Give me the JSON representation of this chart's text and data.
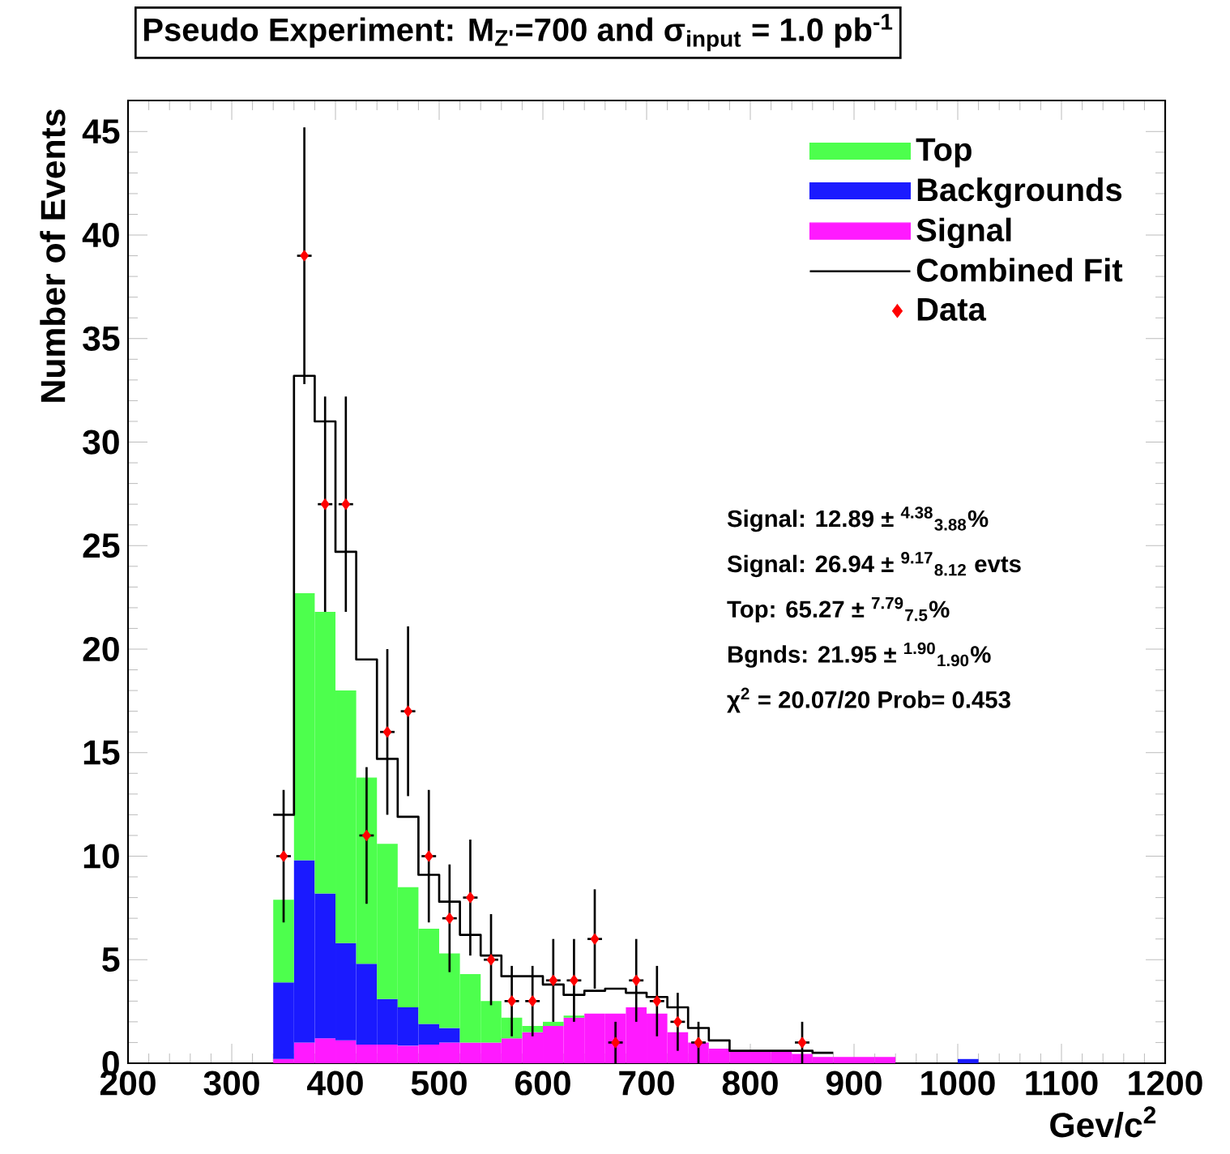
{
  "chart_data": {
    "type": "bar",
    "title": "Pseudo Experiment: M$_{Z'}$=700 and σ$_{input}$ = 1.0 pb$^{-1}$",
    "xlabel": "Gev/c$^{2}$",
    "ylabel": "Number of Events",
    "x": [
      350,
      370,
      390,
      410,
      430,
      450,
      470,
      490,
      510,
      530,
      550,
      570,
      590,
      610,
      630,
      650,
      670,
      690,
      710,
      730,
      750,
      770,
      790,
      810,
      830,
      850,
      870,
      890,
      910,
      930,
      950,
      970,
      990,
      1010
    ],
    "stacked": true,
    "series": [
      {
        "name": "Signal",
        "color": "#ff1aff",
        "values": [
          0.2,
          1.0,
          1.2,
          1.1,
          0.9,
          0.9,
          0.85,
          0.9,
          1.0,
          1.0,
          1.0,
          1.2,
          1.5,
          1.8,
          2.2,
          2.4,
          2.4,
          2.7,
          2.4,
          1.5,
          1.0,
          0.7,
          0.6,
          0.6,
          0.6,
          0.45,
          0.3,
          0.3,
          0.3,
          0.3,
          0,
          0,
          0,
          0
        ]
      },
      {
        "name": "Backgrounds",
        "color": "#1a1aff",
        "values": [
          3.7,
          8.8,
          7.0,
          4.7,
          3.9,
          2.2,
          1.85,
          1.0,
          0.7,
          0,
          0,
          0,
          0,
          0,
          0,
          0,
          0,
          0,
          0,
          0,
          0,
          0,
          0,
          0,
          0,
          0,
          0,
          0,
          0,
          0,
          0,
          0,
          0,
          0.2
        ]
      },
      {
        "name": "Top",
        "color": "#4dff4d",
        "values": [
          4.0,
          12.9,
          13.6,
          12.2,
          9.0,
          7.5,
          5.8,
          4.6,
          3.6,
          3.3,
          2.0,
          1.0,
          0.3,
          0.2,
          0.1,
          0,
          0,
          0,
          0,
          0,
          0,
          0,
          0,
          0,
          0,
          0,
          0,
          0,
          0,
          0,
          0,
          0,
          0,
          0
        ]
      },
      {
        "name": "Combined Fit",
        "type": "step",
        "color": "#000000",
        "x": [
          340,
          360,
          380,
          400,
          420,
          440,
          460,
          480,
          500,
          520,
          540,
          560,
          580,
          600,
          620,
          640,
          660,
          680,
          700,
          720,
          740,
          760,
          780,
          800,
          820,
          840,
          860,
          880
        ],
        "values": [
          12.0,
          33.2,
          31.0,
          24.7,
          19.5,
          14.7,
          11.9,
          9.1,
          7.8,
          6.2,
          5.2,
          4.2,
          4.2,
          3.8,
          3.3,
          3.5,
          3.6,
          3.4,
          3.2,
          2.7,
          1.7,
          1.1,
          0.6,
          0.6,
          0.6,
          0.6,
          0.5,
          0.5
        ]
      },
      {
        "name": "Data",
        "type": "scatter",
        "color": "#ff0000",
        "marker": "diamond",
        "x": [
          350,
          370,
          390,
          410,
          430,
          450,
          470,
          490,
          510,
          530,
          550,
          570,
          590,
          610,
          630,
          650,
          670,
          690,
          710,
          730,
          750,
          850
        ],
        "values": [
          10,
          39,
          27,
          27,
          11,
          16,
          17,
          10,
          7,
          8,
          5,
          3,
          3,
          4,
          4,
          6,
          1,
          4,
          3,
          2,
          1,
          1
        ],
        "errors": [
          3.2,
          6.2,
          5.2,
          5.2,
          3.3,
          4,
          4.1,
          3.2,
          2.6,
          2.8,
          2.2,
          1.7,
          1.7,
          2,
          2,
          2.4,
          1,
          2,
          1.7,
          1.4,
          1,
          1
        ],
        "xerrors": [
          7,
          7,
          7,
          7,
          7,
          7,
          7,
          7,
          7,
          7,
          7,
          7,
          7,
          7,
          7,
          7,
          7,
          7,
          7,
          7,
          7,
          7
        ]
      }
    ],
    "xlim": [
      200,
      1200
    ],
    "ylim": [
      0,
      46.5
    ],
    "xticks": [
      200,
      300,
      400,
      500,
      600,
      700,
      800,
      900,
      1000,
      1100,
      1200
    ],
    "yticks": [
      0,
      5,
      10,
      15,
      20,
      25,
      30,
      35,
      40,
      45
    ],
    "legend": "top right",
    "annotations": [
      "Signal:   12.89 ± $^{4.38}$$_{3.88}$%",
      "Signal:   26.94 ± $^{9.17}$$_{8.12}$ evts",
      "Top:   65.27 ± $^{7.79}$$_{7.5}$%",
      "Bgnds:   21.95 ± $^{1.90}$$_{1.90}$%",
      "χ$^{2}$ =   20.07/20  Prob=   0.453"
    ]
  }
}
